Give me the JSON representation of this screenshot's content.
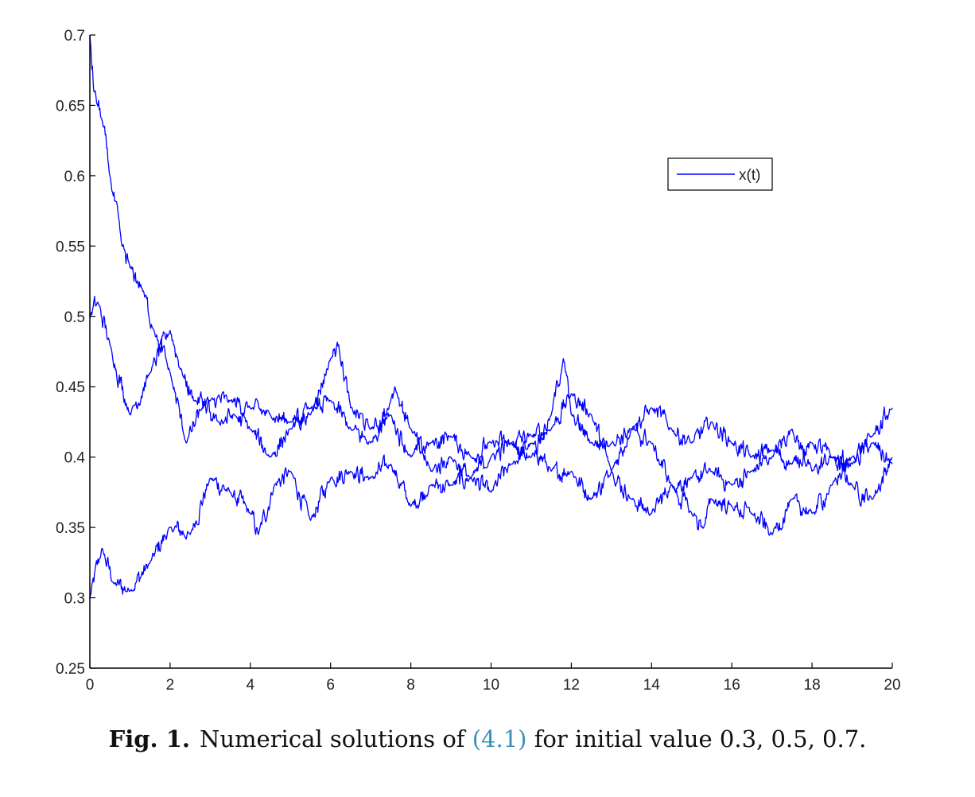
{
  "chart_data": {
    "type": "line",
    "title": "",
    "xlabel": "",
    "ylabel": "",
    "xlim": [
      0,
      20
    ],
    "ylim": [
      0.25,
      0.7
    ],
    "xticks": [
      "0",
      "2",
      "4",
      "6",
      "8",
      "10",
      "12",
      "14",
      "16",
      "18",
      "20"
    ],
    "yticks": [
      "0.25",
      "0.3",
      "0.35",
      "0.4",
      "0.45",
      "0.5",
      "0.55",
      "0.6",
      "0.65",
      "0.7"
    ],
    "grid": false,
    "legend": {
      "position": "top-right",
      "entries": [
        "x(t)"
      ]
    },
    "line_color": "#0000ff",
    "series": [
      {
        "initial_value": 0.3,
        "x": [
          0,
          0.3,
          0.6,
          1.0,
          1.5,
          2.0,
          2.5,
          3.0,
          3.5,
          4.0,
          4.2,
          4.6,
          5.0,
          5.5,
          6.0,
          6.5,
          7.0,
          7.5,
          8.0,
          8.5,
          9.0,
          9.5,
          10.0,
          10.5,
          11.0,
          11.5,
          12.0,
          12.5,
          13.0,
          13.5,
          14.0,
          14.5,
          15.0,
          15.5,
          16.0,
          16.5,
          17.0,
          17.5,
          18.0,
          18.5,
          19.0,
          19.5,
          20.0
        ],
        "y": [
          0.3,
          0.335,
          0.31,
          0.305,
          0.325,
          0.35,
          0.345,
          0.385,
          0.375,
          0.36,
          0.345,
          0.38,
          0.39,
          0.355,
          0.385,
          0.39,
          0.385,
          0.395,
          0.365,
          0.38,
          0.38,
          0.385,
          0.375,
          0.395,
          0.41,
          0.39,
          0.39,
          0.37,
          0.39,
          0.37,
          0.36,
          0.38,
          0.385,
          0.39,
          0.38,
          0.39,
          0.4,
          0.42,
          0.39,
          0.4,
          0.38,
          0.37,
          0.4
        ]
      },
      {
        "initial_value": 0.5,
        "x": [
          0,
          0.2,
          0.5,
          1.0,
          1.5,
          2.0,
          2.3,
          2.6,
          3.0,
          3.5,
          4.0,
          4.5,
          5.0,
          5.5,
          6.0,
          6.2,
          6.5,
          7.0,
          7.5,
          8.0,
          8.5,
          9.0,
          9.5,
          10.0,
          10.5,
          11.0,
          11.5,
          12.0,
          12.5,
          13.0,
          13.5,
          14.0,
          14.5,
          15.0,
          15.5,
          16.0,
          16.5,
          17.0,
          17.5,
          18.0,
          18.5,
          19.0,
          19.5,
          20.0
        ],
        "y": [
          0.5,
          0.51,
          0.48,
          0.43,
          0.46,
          0.49,
          0.46,
          0.44,
          0.44,
          0.44,
          0.435,
          0.43,
          0.425,
          0.43,
          0.47,
          0.48,
          0.435,
          0.42,
          0.43,
          0.4,
          0.41,
          0.415,
          0.4,
          0.41,
          0.41,
          0.415,
          0.42,
          0.445,
          0.43,
          0.39,
          0.42,
          0.435,
          0.42,
          0.41,
          0.425,
          0.41,
          0.4,
          0.405,
          0.395,
          0.41,
          0.4,
          0.395,
          0.41,
          0.395
        ]
      },
      {
        "initial_value": 0.7,
        "x": [
          0,
          0.1,
          0.3,
          0.5,
          0.8,
          1.0,
          1.3,
          1.6,
          2.0,
          2.4,
          2.8,
          3.2,
          3.6,
          4.0,
          4.5,
          5.0,
          5.5,
          6.0,
          6.5,
          7.0,
          7.5,
          7.6,
          8.0,
          8.5,
          9.0,
          9.5,
          10.0,
          10.5,
          11.0,
          11.5,
          11.8,
          12.0,
          12.5,
          13.0,
          13.5,
          14.0,
          14.5,
          15.0,
          15.3,
          15.5,
          16.0,
          16.5,
          17.0,
          17.5,
          18.0,
          18.5,
          19.0,
          19.5,
          20.0
        ],
        "y": [
          0.7,
          0.66,
          0.64,
          0.6,
          0.55,
          0.535,
          0.52,
          0.49,
          0.46,
          0.41,
          0.435,
          0.425,
          0.43,
          0.42,
          0.4,
          0.42,
          0.435,
          0.44,
          0.42,
          0.41,
          0.44,
          0.45,
          0.42,
          0.39,
          0.4,
          0.385,
          0.4,
          0.41,
          0.4,
          0.43,
          0.47,
          0.43,
          0.41,
          0.41,
          0.42,
          0.41,
          0.38,
          0.36,
          0.35,
          0.37,
          0.365,
          0.36,
          0.345,
          0.37,
          0.36,
          0.38,
          0.4,
          0.415,
          0.435
        ]
      }
    ]
  },
  "caption": {
    "label": "Fig. 1.",
    "text_before": "Numerical solutions of ",
    "ref": "(4.1)",
    "text_after": " for initial value 0.3, 0.5, 0.7."
  }
}
